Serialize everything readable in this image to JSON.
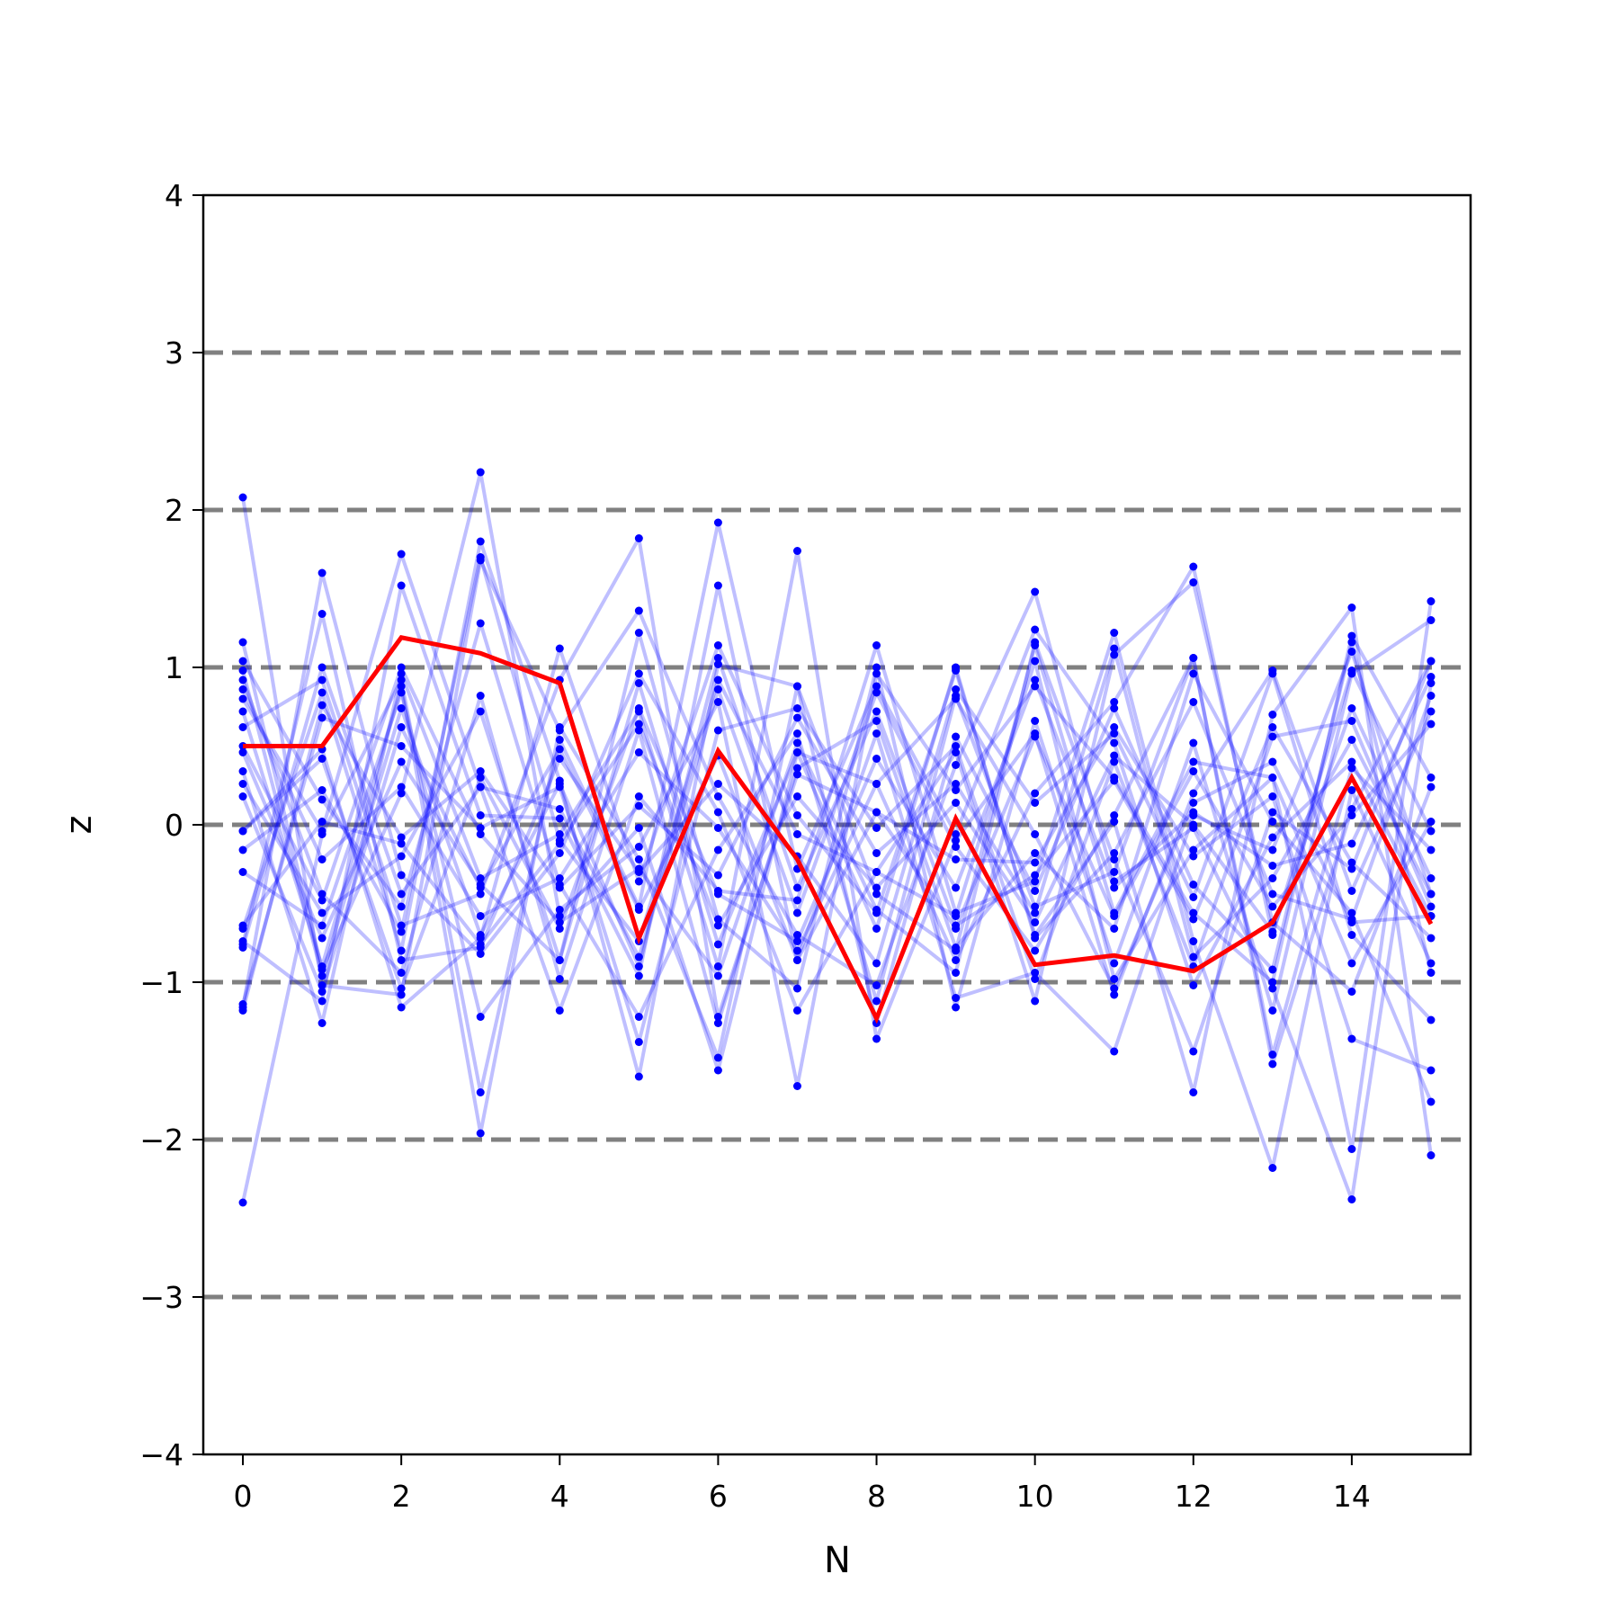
{
  "chart_data": {
    "type": "line",
    "title": "",
    "xlabel": "N",
    "ylabel": "z",
    "xlim": [
      -0.5,
      15.5
    ],
    "ylim": [
      -4,
      4
    ],
    "x_ticks": [
      0,
      2,
      4,
      6,
      8,
      10,
      12,
      14
    ],
    "x_tick_labels": [
      "0",
      "2",
      "4",
      "6",
      "8",
      "10",
      "12",
      "14"
    ],
    "y_ticks": [
      -4,
      -3,
      -2,
      -1,
      0,
      1,
      2,
      3,
      4
    ],
    "y_tick_labels": [
      "−4",
      "−3",
      "−2",
      "−1",
      "0",
      "1",
      "2",
      "3",
      "4"
    ],
    "reference_lines": {
      "y": [
        -3,
        -2,
        -1,
        0,
        1,
        2,
        3
      ],
      "style": "dashed",
      "color": "#808080"
    },
    "grid": false,
    "legend": "none",
    "colors": {
      "background_series": "#0000ff",
      "highlight_series": "#ff0000",
      "reference_lines": "#808080"
    },
    "x": [
      0,
      1,
      2,
      3,
      4,
      5,
      6,
      7,
      8,
      9,
      10,
      11,
      12,
      13,
      14,
      15
    ],
    "series": [
      {
        "values": [
          2.08,
          -1.02,
          -1.08,
          1.68,
          0.6,
          1.36,
          0.18,
          -0.7,
          -1.02,
          0.38,
          1.48,
          -0.36,
          -0.02,
          -1.04,
          -2.38,
          0.9
        ],
        "role": "sample"
      },
      {
        "values": [
          -2.4,
          -0.06,
          0.92,
          -1.7,
          0.54,
          -0.52,
          1.92,
          -0.28,
          0.88,
          -0.06,
          1.24,
          0.52,
          -1.02,
          -0.08,
          0.4,
          -0.58
        ],
        "role": "sample"
      },
      {
        "values": [
          1.16,
          -0.92,
          0.2,
          2.24,
          -0.58,
          -0.02,
          -1.56,
          0.46,
          0.26,
          -0.86,
          0.2,
          0.78,
          1.64,
          -0.7,
          0.98,
          -0.04
        ],
        "role": "sample"
      },
      {
        "values": [
          -1.16,
          1.6,
          -0.32,
          -0.82,
          -0.18,
          0.96,
          0.08,
          -1.18,
          -0.3,
          0.46,
          -1.12,
          1.08,
          1.54,
          -0.62,
          -1.06,
          0.24
        ],
        "role": "sample"
      },
      {
        "values": [
          0.8,
          -0.04,
          1.72,
          0.24,
          -1.18,
          0.18,
          -0.42,
          -0.48,
          1.14,
          -0.56,
          -0.36,
          1.22,
          -0.74,
          -2.18,
          0.22,
          -0.88
        ],
        "role": "sample"
      },
      {
        "values": [
          -0.66,
          0.84,
          -0.8,
          1.8,
          0.28,
          -1.6,
          1.02,
          0.88,
          -0.44,
          -0.8,
          1.14,
          -0.56,
          0.4,
          0.3,
          -2.06,
          1.42
        ],
        "role": "sample"
      },
      {
        "values": [
          0.34,
          -1.26,
          0.96,
          -0.34,
          -0.06,
          0.72,
          -0.9,
          1.74,
          -1.36,
          -0.1,
          0.58,
          -1.08,
          0.2,
          0.98,
          -0.42,
          0.72
        ],
        "role": "sample"
      },
      {
        "values": [
          -0.04,
          0.48,
          -1.16,
          -0.72,
          1.12,
          -0.36,
          1.14,
          0.06,
          -0.56,
          0.98,
          -0.7,
          0.02,
          -1.7,
          0.7,
          1.38,
          -2.1
        ],
        "role": "sample"
      },
      {
        "values": [
          1.04,
          0.16,
          -0.52,
          1.28,
          -0.38,
          -1.22,
          -0.16,
          0.58,
          -1.12,
          0.82,
          -0.52,
          -0.3,
          1.06,
          -1.52,
          0.1,
          1.04
        ],
        "role": "sample"
      },
      {
        "values": [
          -0.74,
          -1.12,
          1.52,
          0.06,
          0.04,
          -0.96,
          1.52,
          -0.86,
          0.58,
          -1.1,
          -0.94,
          -1.44,
          0.06,
          -0.16,
          1.1,
          -0.44
        ],
        "role": "sample"
      },
      {
        "values": [
          0.62,
          0.92,
          -0.64,
          -0.44,
          0.92,
          1.82,
          -1.22,
          0.32,
          0.08,
          -0.22,
          -0.24,
          0.62,
          -0.2,
          0.18,
          -1.36,
          -1.56
        ],
        "role": "sample"
      },
      {
        "values": [
          -0.3,
          -0.64,
          0.84,
          -1.22,
          -0.54,
          -0.14,
          0.78,
          -1.66,
          0.96,
          0.22,
          0.88,
          0.3,
          -0.56,
          -1.0,
          1.2,
          0.3
        ],
        "role": "sample"
      },
      {
        "values": [
          0.92,
          -0.44,
          -0.94,
          0.82,
          -0.98,
          0.6,
          -1.26,
          0.36,
          0.66,
          -0.78,
          -0.18,
          -0.66,
          0.96,
          0.02,
          -0.56,
          -1.76
        ],
        "role": "sample"
      },
      {
        "values": [
          -1.14,
          0.68,
          0.5,
          -0.02,
          0.24,
          -1.38,
          0.6,
          0.74,
          -0.02,
          0.5,
          -0.98,
          0.4,
          -0.9,
          0.56,
          0.66,
          -0.52
        ],
        "role": "sample"
      },
      {
        "values": [
          0.26,
          -0.56,
          -0.2,
          0.72,
          -0.86,
          1.22,
          -0.6,
          -1.04,
          1.0,
          -1.16,
          0.66,
          -0.88,
          0.52,
          -1.18,
          0.96,
          1.3
        ],
        "role": "sample"
      },
      {
        "values": [
          -0.76,
          1.34,
          -0.86,
          -0.78,
          0.42,
          -0.3,
          0.26,
          -0.2,
          -0.88,
          0.86,
          0.14,
          0.58,
          -0.46,
          0.96,
          -0.7,
          -1.24
        ],
        "role": "sample"
      },
      {
        "values": [
          0.46,
          -0.72,
          0.4,
          -0.38,
          -0.86,
          0.9,
          -0.76,
          0.46,
          -0.66,
          1.0,
          -0.72,
          -0.18,
          0.78,
          -0.44,
          -0.6,
          0.82
        ],
        "role": "sample"
      },
      {
        "values": [
          -0.16,
          0.22,
          -0.68,
          1.7,
          -0.1,
          -0.74,
          0.92,
          -0.06,
          -0.3,
          -0.58,
          1.04,
          -0.98,
          -0.16,
          0.3,
          -0.88,
          0.02
        ],
        "role": "sample"
      },
      {
        "values": [
          0.72,
          -0.9,
          0.88,
          -1.96,
          0.62,
          -0.22,
          -1.48,
          0.88,
          -1.26,
          0.56,
          -0.42,
          0.74,
          -0.38,
          -0.92,
          1.16,
          -0.94
        ],
        "role": "sample"
      },
      {
        "values": [
          -0.04,
          0.42,
          -1.04,
          0.3,
          -0.66,
          0.74,
          -0.44,
          -0.74,
          0.42,
          -0.4,
          0.92,
          -0.4,
          0.08,
          -0.26,
          -0.12,
          0.94
        ],
        "role": "sample"
      },
      {
        "values": [
          0.98,
          -0.96,
          0.74,
          -0.7,
          0.26,
          -0.9,
          1.06,
          -0.4,
          0.72,
          -0.64,
          -0.32,
          0.28,
          -0.6,
          0.62,
          -0.24,
          -0.72
        ],
        "role": "sample"
      },
      {
        "values": [
          -1.18,
          0.76,
          -0.08,
          0.34,
          -0.4,
          0.12,
          -0.32,
          0.68,
          -0.18,
          0.26,
          -0.56,
          1.12,
          -0.84,
          -0.34,
          0.54,
          -0.44
        ],
        "role": "sample"
      },
      {
        "values": [
          0.18,
          -1.06,
          0.62,
          -0.4,
          0.48,
          -0.54,
          0.44,
          -0.86,
          0.08,
          -0.66,
          0.56,
          -0.58,
          0.34,
          -0.52,
          0.06,
          0.64
        ],
        "role": "sample"
      },
      {
        "values": [
          -0.64,
          0.02,
          -0.12,
          -0.76,
          -0.12,
          0.64,
          -0.64,
          0.18,
          -0.4,
          0.14,
          -0.62,
          0.44,
          0.0,
          -0.68,
          0.74,
          -0.34
        ],
        "role": "sample"
      },
      {
        "values": [
          0.5,
          -0.48,
          1.0,
          -0.06,
          -0.62,
          -0.28,
          -0.96,
          0.52,
          -0.54,
          -0.94,
          1.16,
          -0.22,
          -1.44,
          0.08,
          -0.28,
          1.04
        ],
        "role": "sample"
      },
      {
        "values": [
          -0.78,
          1.0,
          -0.44,
          0.24,
          0.1,
          -0.84,
          0.86,
          -0.56,
          0.84,
          -0.14,
          -0.8,
          0.06,
          1.06,
          -1.46,
          0.36,
          -0.16
        ],
        "role": "sample"
      },
      {
        "values": [
          0.86,
          -0.22,
          0.24,
          -0.58,
          -0.34,
          0.46,
          -0.02,
          -0.8,
          0.26,
          0.8,
          -0.06,
          -1.04,
          0.14,
          0.4,
          -0.62,
          -0.58
        ],
        "role": "sample"
      },
      {
        "values": [
          0.5,
          0.5,
          1.19,
          1.09,
          0.9,
          -0.72,
          0.47,
          -0.22,
          -1.23,
          0.04,
          -0.89,
          -0.83,
          -0.93,
          -0.62,
          0.3,
          -0.63
        ],
        "role": "highlight"
      }
    ]
  }
}
